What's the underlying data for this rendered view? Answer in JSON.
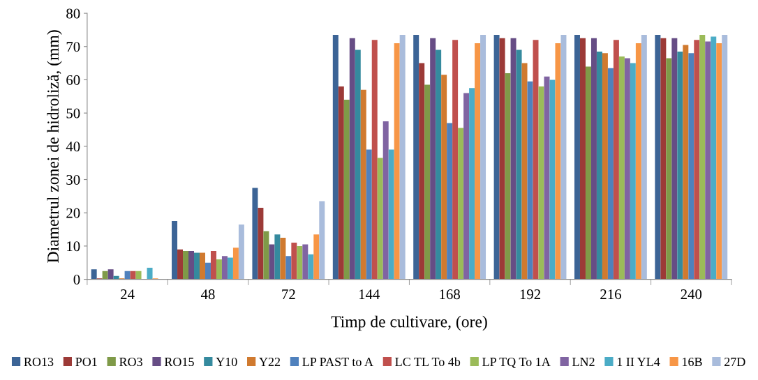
{
  "chart_data": {
    "type": "bar",
    "xlabel": "Timp de cultivare, (ore)",
    "ylabel": "Diametrul zonei de hidroliză, (mm)",
    "categories": [
      "24",
      "48",
      "72",
      "144",
      "168",
      "192",
      "216",
      "240"
    ],
    "ylim": [
      0,
      80
    ],
    "yticks": [
      0,
      10,
      20,
      30,
      40,
      50,
      60,
      70,
      80
    ],
    "grid": false,
    "legend": "bottom",
    "series": [
      {
        "name": "RO13",
        "color": "#3c6496",
        "values": [
          3,
          17.5,
          27.5,
          73.5,
          73.5,
          73.5,
          73.5,
          73.5
        ]
      },
      {
        "name": "PO1",
        "color": "#9c3a37",
        "values": [
          0.3,
          9,
          21.5,
          58,
          65,
          72.5,
          72.5,
          72.5
        ]
      },
      {
        "name": "RO3",
        "color": "#7f9a48",
        "values": [
          2.5,
          8.5,
          14.5,
          54,
          58.5,
          62,
          64,
          66.5
        ]
      },
      {
        "name": "RO15",
        "color": "#664d85",
        "values": [
          3,
          8.5,
          10.5,
          72.5,
          72.5,
          72.5,
          72.5,
          72.5
        ]
      },
      {
        "name": "Y10",
        "color": "#358a9e",
        "values": [
          1,
          8,
          13.5,
          69,
          69,
          69,
          68.5,
          68.5
        ]
      },
      {
        "name": "Y22",
        "color": "#d07a2f",
        "values": [
          0.3,
          8,
          12.5,
          57,
          61.5,
          65,
          68,
          70.5
        ]
      },
      {
        "name": "LP PAST to A",
        "color": "#4f81bd",
        "values": [
          2.5,
          5,
          7,
          39,
          47,
          59.5,
          63.5,
          68
        ]
      },
      {
        "name": "LC TL To 4b",
        "color": "#c0504d",
        "values": [
          2.5,
          8.5,
          11,
          72,
          72,
          72,
          72,
          72
        ]
      },
      {
        "name": "LP TQ To 1A",
        "color": "#9bbb59",
        "values": [
          2.5,
          6,
          10,
          36.5,
          45.5,
          58,
          67,
          73.5
        ]
      },
      {
        "name": "LN2",
        "color": "#8064a2",
        "values": [
          null,
          7,
          10.5,
          47.5,
          56,
          61,
          66.5,
          71.5
        ]
      },
      {
        "name": "1 II YL4",
        "color": "#4bacc6",
        "values": [
          3.5,
          6.5,
          7.5,
          39,
          57.5,
          60,
          65,
          73
        ]
      },
      {
        "name": "16B",
        "color": "#f79646",
        "values": [
          0.3,
          9.5,
          13.5,
          71,
          71,
          71,
          71,
          71
        ]
      },
      {
        "name": "27D",
        "color": "#a9bcdc",
        "values": [
          null,
          16.5,
          23.5,
          73.5,
          73.5,
          73.5,
          73.5,
          73.5
        ]
      }
    ]
  }
}
